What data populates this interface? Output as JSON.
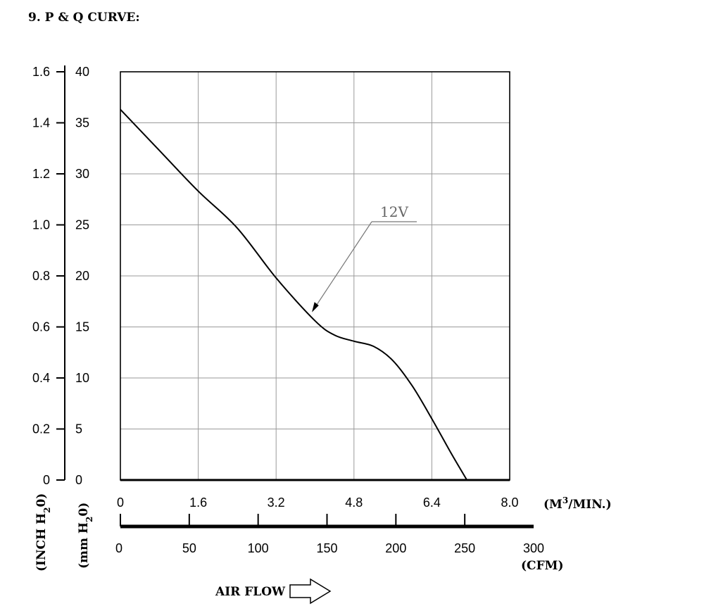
{
  "heading": "9. P & Q CURVE:",
  "chart_data": {
    "type": "line",
    "title": "",
    "x_primary": {
      "unit_label": "(M³/MIN.)",
      "unit_base": "(M",
      "unit_sup": "3",
      "unit_tail": "/MIN.)",
      "ticks": [
        "0",
        "1.6",
        "3.2",
        "4.8",
        "6.4",
        "8.0"
      ],
      "range": [
        0,
        8.0
      ]
    },
    "x_secondary": {
      "unit_label": "(CFM)",
      "ticks": [
        "0",
        "50",
        "100",
        "150",
        "200",
        "250",
        "300"
      ],
      "range": [
        0,
        300
      ]
    },
    "y_primary": {
      "unit_label": "(mm H₂0)",
      "unit_base": "(mm H",
      "unit_sub": "2",
      "unit_tail": "0)",
      "ticks": [
        "0",
        "5",
        "10",
        "15",
        "20",
        "25",
        "30",
        "35",
        "40"
      ],
      "range": [
        0,
        40
      ]
    },
    "y_secondary": {
      "unit_label": "(INCH H₂0)",
      "unit_base": "(INCH H",
      "unit_sub": "2",
      "unit_tail": "0)",
      "ticks": [
        "0",
        "0.2",
        "0.4",
        "0.6",
        "0.8",
        "1.0",
        "1.2",
        "1.4",
        "1.6"
      ],
      "range": [
        0,
        1.6
      ]
    },
    "grid": true,
    "series": [
      {
        "name": "12V",
        "x": [
          0,
          0.8,
          1.6,
          2.4,
          3.2,
          4.0,
          4.4,
          4.8,
          5.2,
          5.6,
          6.0,
          6.4,
          6.8,
          7.12
        ],
        "y": [
          36.3,
          32.3,
          28.3,
          24.7,
          19.8,
          15.6,
          14.2,
          13.6,
          13.1,
          11.7,
          9.2,
          6.0,
          2.6,
          0
        ]
      }
    ]
  },
  "airflow_label": "AIR FLOW"
}
